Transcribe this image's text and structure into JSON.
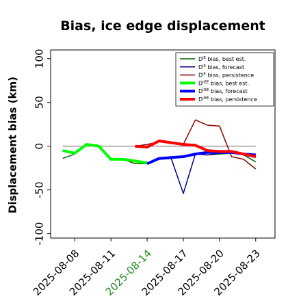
{
  "chart_data": {
    "type": "line",
    "title": "Bias, ice edge displacement",
    "xlabel": "",
    "ylabel": "Displacement bias (km)",
    "ylim": [
      -105,
      110
    ],
    "yticks": [
      -100,
      -50,
      0,
      50,
      100
    ],
    "xticks": [
      "2025-08-08",
      "2025-08-11",
      "2025-08-14",
      "2025-08-17",
      "2025-08-20",
      "2025-08-23"
    ],
    "highlight_tick": "2025-08-14",
    "highlight_color": "#228B22",
    "reference_line": 0,
    "grid": false,
    "legend_position": "upper-right",
    "series": [
      {
        "name": "D^IE bias, best est.",
        "sup": "IE",
        "label": " bias, best est.",
        "color": "#006400",
        "width": 1.5,
        "x": [
          "2025-08-07",
          "2025-08-08",
          "2025-08-09",
          "2025-08-10",
          "2025-08-11",
          "2025-08-12",
          "2025-08-13",
          "2025-08-14",
          "2025-08-15",
          "2025-08-16",
          "2025-08-17",
          "2025-08-18",
          "2025-08-19",
          "2025-08-20",
          "2025-08-21",
          "2025-08-22",
          "2025-08-23"
        ],
        "y": [
          -14,
          -9,
          2,
          0,
          -14,
          -15,
          -20,
          -20,
          -15,
          -14,
          -12,
          -8,
          -10,
          -9,
          -8,
          -10,
          -18
        ]
      },
      {
        "name": "D^IE bias, forecast",
        "sup": "IE",
        "label": " bias, forecast",
        "color": "#00008B",
        "width": 1.5,
        "x": [
          "2025-08-14",
          "2025-08-15",
          "2025-08-16",
          "2025-08-17",
          "2025-08-18",
          "2025-08-19",
          "2025-08-20",
          "2025-08-21",
          "2025-08-22",
          "2025-08-23"
        ],
        "y": [
          -20,
          -15,
          -14,
          -54,
          -9,
          -10,
          -8,
          -6,
          -10,
          -13
        ]
      },
      {
        "name": "D^IE bias, persistence",
        "sup": "IE",
        "label": " bias, persistence",
        "color": "#8B0000",
        "width": 1.5,
        "x": [
          "2025-08-13",
          "2025-08-14",
          "2025-08-15",
          "2025-08-16",
          "2025-08-17",
          "2025-08-18",
          "2025-08-19",
          "2025-08-20",
          "2025-08-21",
          "2025-08-22",
          "2025-08-23"
        ],
        "y": [
          0,
          2,
          5,
          4,
          2,
          30,
          24,
          23,
          -12,
          -15,
          -26
        ]
      },
      {
        "name": "D^IIEE bias, best est.",
        "sup": "IIEE",
        "label": " bias, best est.",
        "color": "#00FF00",
        "width": 4,
        "x": [
          "2025-08-07",
          "2025-08-08",
          "2025-08-09",
          "2025-08-10",
          "2025-08-11",
          "2025-08-12",
          "2025-08-13",
          "2025-08-14"
        ],
        "y": [
          -5,
          -8,
          2,
          0,
          -15,
          -15,
          -17,
          -19
        ]
      },
      {
        "name": "D^IIEE bias, forecast",
        "sup": "IIEE",
        "label": " bias, forecast",
        "color": "#0000FF",
        "width": 4,
        "x": [
          "2025-08-14",
          "2025-08-15",
          "2025-08-16",
          "2025-08-17",
          "2025-08-18",
          "2025-08-19",
          "2025-08-20",
          "2025-08-21",
          "2025-08-22",
          "2025-08-23"
        ],
        "y": [
          -20,
          -14,
          -13,
          -12,
          -9,
          -7,
          -7,
          -7,
          -9,
          -10
        ]
      },
      {
        "name": "D^IIEE bias, persistence",
        "sup": "IIEE",
        "label": " bias, persistence",
        "color": "#FF0000",
        "width": 4,
        "x": [
          "2025-08-13",
          "2025-08-14",
          "2025-08-15",
          "2025-08-16",
          "2025-08-17",
          "2025-08-18",
          "2025-08-19",
          "2025-08-20",
          "2025-08-21",
          "2025-08-22",
          "2025-08-23"
        ],
        "y": [
          0,
          -1,
          6,
          4,
          2,
          1,
          -5,
          -6,
          -6,
          -9,
          -12
        ]
      }
    ]
  }
}
